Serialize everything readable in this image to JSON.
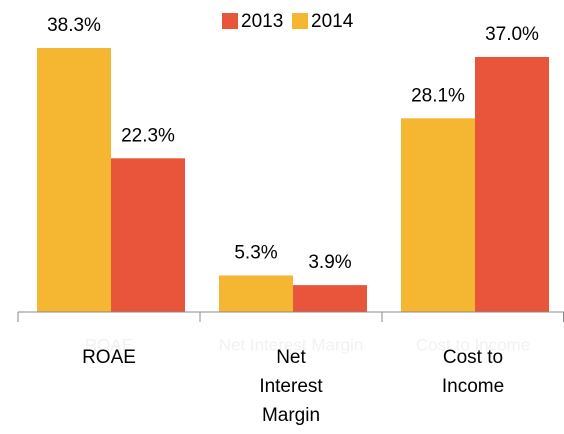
{
  "chart_data": {
    "type": "bar",
    "categories": [
      "ROAE",
      "Net Interest Margin",
      "Cost to Income"
    ],
    "series": [
      {
        "name": "2014",
        "color": "#f5b731",
        "values": [
          38.3,
          5.3,
          28.1
        ],
        "value_labels": [
          "38.3%",
          "5.3%",
          "28.1%"
        ]
      },
      {
        "name": "2013",
        "color": "#e8553a",
        "values": [
          22.3,
          3.9,
          37.0
        ],
        "value_labels": [
          "22.3%",
          "3.9%",
          "37.0%"
        ]
      }
    ],
    "legend": "top"
  }
}
